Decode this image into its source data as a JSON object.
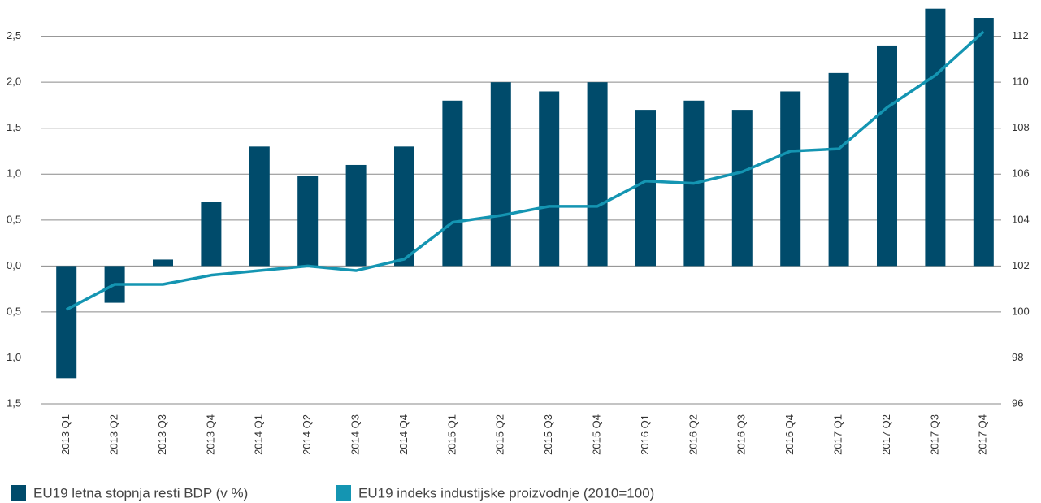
{
  "chart_data": {
    "type": "bar-line",
    "categories": [
      "2013 Q1",
      "2013 Q2",
      "2013 Q3",
      "2013 Q4",
      "2014 Q1",
      "2014 Q2",
      "2014 Q3",
      "2014 Q4",
      "2015 Q1",
      "2015 Q2",
      "2015 Q3",
      "2015 Q4",
      "2016 Q1",
      "2016 Q2",
      "2016 Q3",
      "2016 Q4",
      "2017 Q1",
      "2017 Q2",
      "2017 Q3",
      "2017 Q4"
    ],
    "series": [
      {
        "name": "EU19 letna stopnja resti BDP (v %)",
        "type": "bar",
        "color": "#004b6b",
        "values": [
          -1.22,
          -0.4,
          0.07,
          0.7,
          1.3,
          0.98,
          1.1,
          1.3,
          1.8,
          2.0,
          1.9,
          2.0,
          1.7,
          1.8,
          1.7,
          1.9,
          2.1,
          2.4,
          2.8,
          2.7
        ]
      },
      {
        "name": "EU19 indeks industijske proizvodnje (2010=100)",
        "type": "line",
        "axis": "y2",
        "color": "#1495b2",
        "values": [
          100.1,
          101.2,
          101.2,
          101.6,
          101.8,
          102.0,
          101.8,
          102.3,
          103.9,
          104.2,
          104.6,
          104.6,
          105.7,
          105.6,
          106.1,
          107.0,
          107.1,
          108.9,
          110.3,
          112.2
        ]
      }
    ],
    "ylim": [
      -1.5,
      2.8
    ],
    "yticks": [
      {
        "value": -1.5,
        "label": "1,5"
      },
      {
        "value": -1.0,
        "label": "1,0"
      },
      {
        "value": -0.5,
        "label": "0,5"
      },
      {
        "value": 0,
        "label": "0,0"
      },
      {
        "value": 0.5,
        "label": "0,5"
      },
      {
        "value": 1.0,
        "label": "1,0"
      },
      {
        "value": 1.5,
        "label": "1,5"
      },
      {
        "value": 2.0,
        "label": "2,0"
      },
      {
        "value": 2.5,
        "label": "2,5"
      }
    ],
    "y2lim": [
      96,
      113.2
    ],
    "y2ticks": [
      96,
      98,
      100,
      102,
      104,
      106,
      108,
      110,
      112
    ],
    "grid": true
  }
}
